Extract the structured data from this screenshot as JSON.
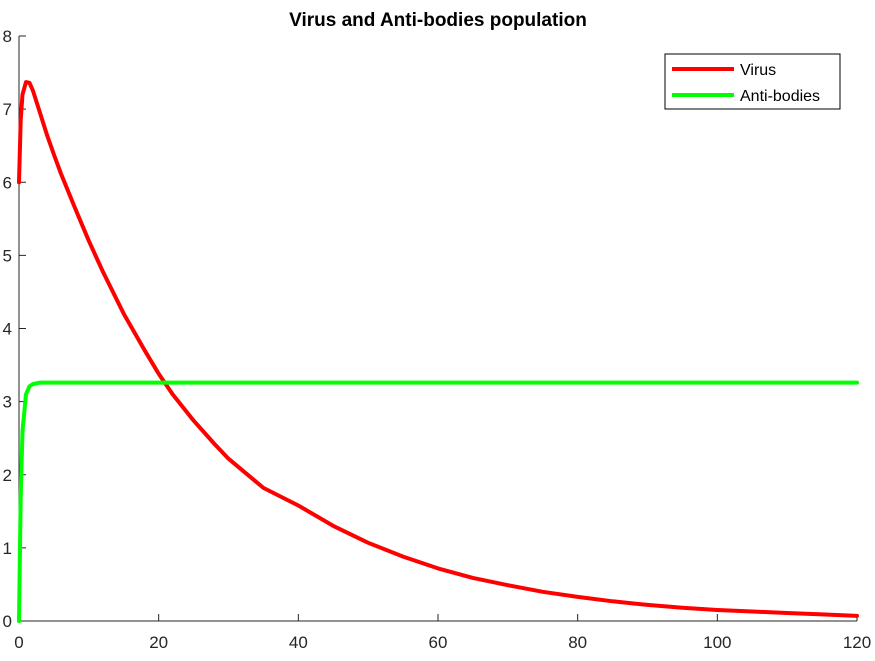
{
  "chart_data": {
    "type": "line",
    "title": "Virus and Anti-bodies population",
    "xlabel": "",
    "ylabel": "",
    "xlim": [
      0,
      120
    ],
    "ylim": [
      0,
      8
    ],
    "xticks": [
      0,
      20,
      40,
      60,
      80,
      100,
      120
    ],
    "yticks": [
      0,
      1,
      2,
      3,
      4,
      5,
      6,
      7,
      8
    ],
    "grid": false,
    "legend_position": "top-right",
    "x": [
      0,
      0.25,
      0.5,
      1,
      1.5,
      2,
      3,
      4,
      5,
      6,
      8,
      10,
      12,
      15,
      18,
      20,
      22,
      25,
      28,
      30,
      35,
      40,
      45,
      50,
      55,
      60,
      65,
      70,
      75,
      80,
      85,
      90,
      95,
      100,
      105,
      110,
      115,
      120
    ],
    "series": [
      {
        "name": "Virus",
        "color": "#ff0000",
        "values": [
          6.0,
          6.85,
          7.2,
          7.37,
          7.36,
          7.25,
          6.95,
          6.65,
          6.38,
          6.12,
          5.65,
          5.2,
          4.78,
          4.2,
          3.7,
          3.38,
          3.1,
          2.74,
          2.42,
          2.22,
          1.82,
          1.58,
          1.3,
          1.07,
          0.88,
          0.72,
          0.59,
          0.49,
          0.4,
          0.33,
          0.27,
          0.22,
          0.18,
          0.15,
          0.13,
          0.11,
          0.09,
          0.07
        ]
      },
      {
        "name": "Anti-bodies",
        "color": "#00ff00",
        "values": [
          0.0,
          1.7,
          2.6,
          3.1,
          3.21,
          3.24,
          3.26,
          3.26,
          3.26,
          3.26,
          3.26,
          3.26,
          3.26,
          3.26,
          3.26,
          3.26,
          3.26,
          3.26,
          3.26,
          3.26,
          3.26,
          3.26,
          3.26,
          3.26,
          3.26,
          3.26,
          3.26,
          3.26,
          3.26,
          3.26,
          3.26,
          3.26,
          3.26,
          3.26,
          3.26,
          3.26,
          3.26,
          3.26
        ]
      }
    ]
  }
}
